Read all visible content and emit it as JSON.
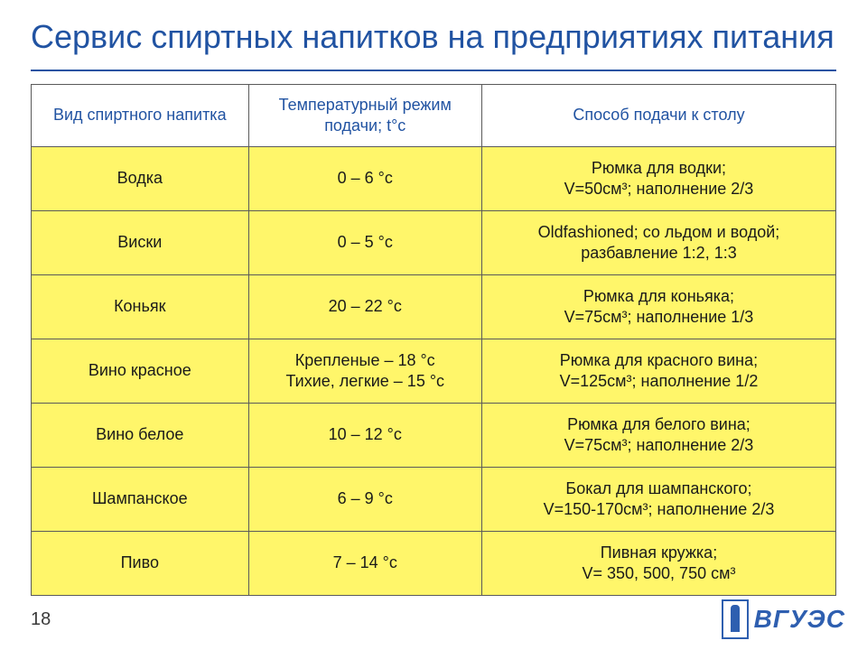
{
  "title": "Сервис спиртных напитков на предприятиях питания",
  "page_number": "18",
  "logo_text": "ВГУЭС",
  "colors": {
    "title_color": "#2153a2",
    "header_text_color": "#2153a2",
    "cell_bg": "#fff66a",
    "cell_text": "#1a1a1a",
    "border_color": "#5a5a5a",
    "background": "#ffffff"
  },
  "table": {
    "column_widths_pct": [
      27,
      29,
      44
    ],
    "header_fontsize_pt": 18,
    "cell_fontsize_pt": 18,
    "columns": [
      "Вид спиртного напитка",
      "Температурный режим подачи; t°с",
      "Способ подачи к столу"
    ],
    "rows": [
      {
        "drink": "Водка",
        "temp": "0 – 6 °с",
        "serve": "Рюмка для водки;<br>V=50см³; наполнение 2/3"
      },
      {
        "drink": "Виски",
        "temp": "0 – 5 °с",
        "serve": "Oldfashioned; со льдом и водой;<br>разбавление 1:2, 1:3"
      },
      {
        "drink": "Коньяк",
        "temp": "20 – 22 °с",
        "serve": "Рюмка для коньяка;<br>V=75см³; наполнение 1/3"
      },
      {
        "drink": "Вино красное",
        "temp": "Крепленые – 18 °с<br>Тихие, легкие – 15 °с",
        "serve": "Рюмка для красного вина;<br>V=125см³; наполнение 1/2"
      },
      {
        "drink": "Вино белое",
        "temp": "10 – 12 °с",
        "serve": "Рюмка для белого вина;<br>V=75см³; наполнение 2/3"
      },
      {
        "drink": "Шампанское",
        "temp": "6 – 9 °с",
        "serve": "Бокал для шампанского;<br>V=150-170см³; наполнение 2/3"
      },
      {
        "drink": "Пиво",
        "temp": "7 – 14 °с",
        "serve": "Пивная кружка;<br>V= 350, 500, 750 см³"
      }
    ]
  }
}
